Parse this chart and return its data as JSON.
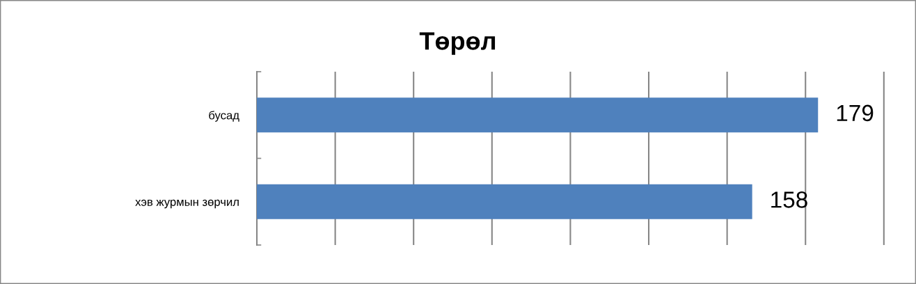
{
  "chart_data": {
    "type": "bar",
    "title": "Төрөл",
    "orientation": "horizontal",
    "categories": [
      "бусад",
      "хэв журмын зөрчил"
    ],
    "values": [
      179,
      158
    ],
    "color": "#4f81bd",
    "data_labels": true,
    "grid": "x",
    "tick_labels": "y",
    "legend": false
  }
}
